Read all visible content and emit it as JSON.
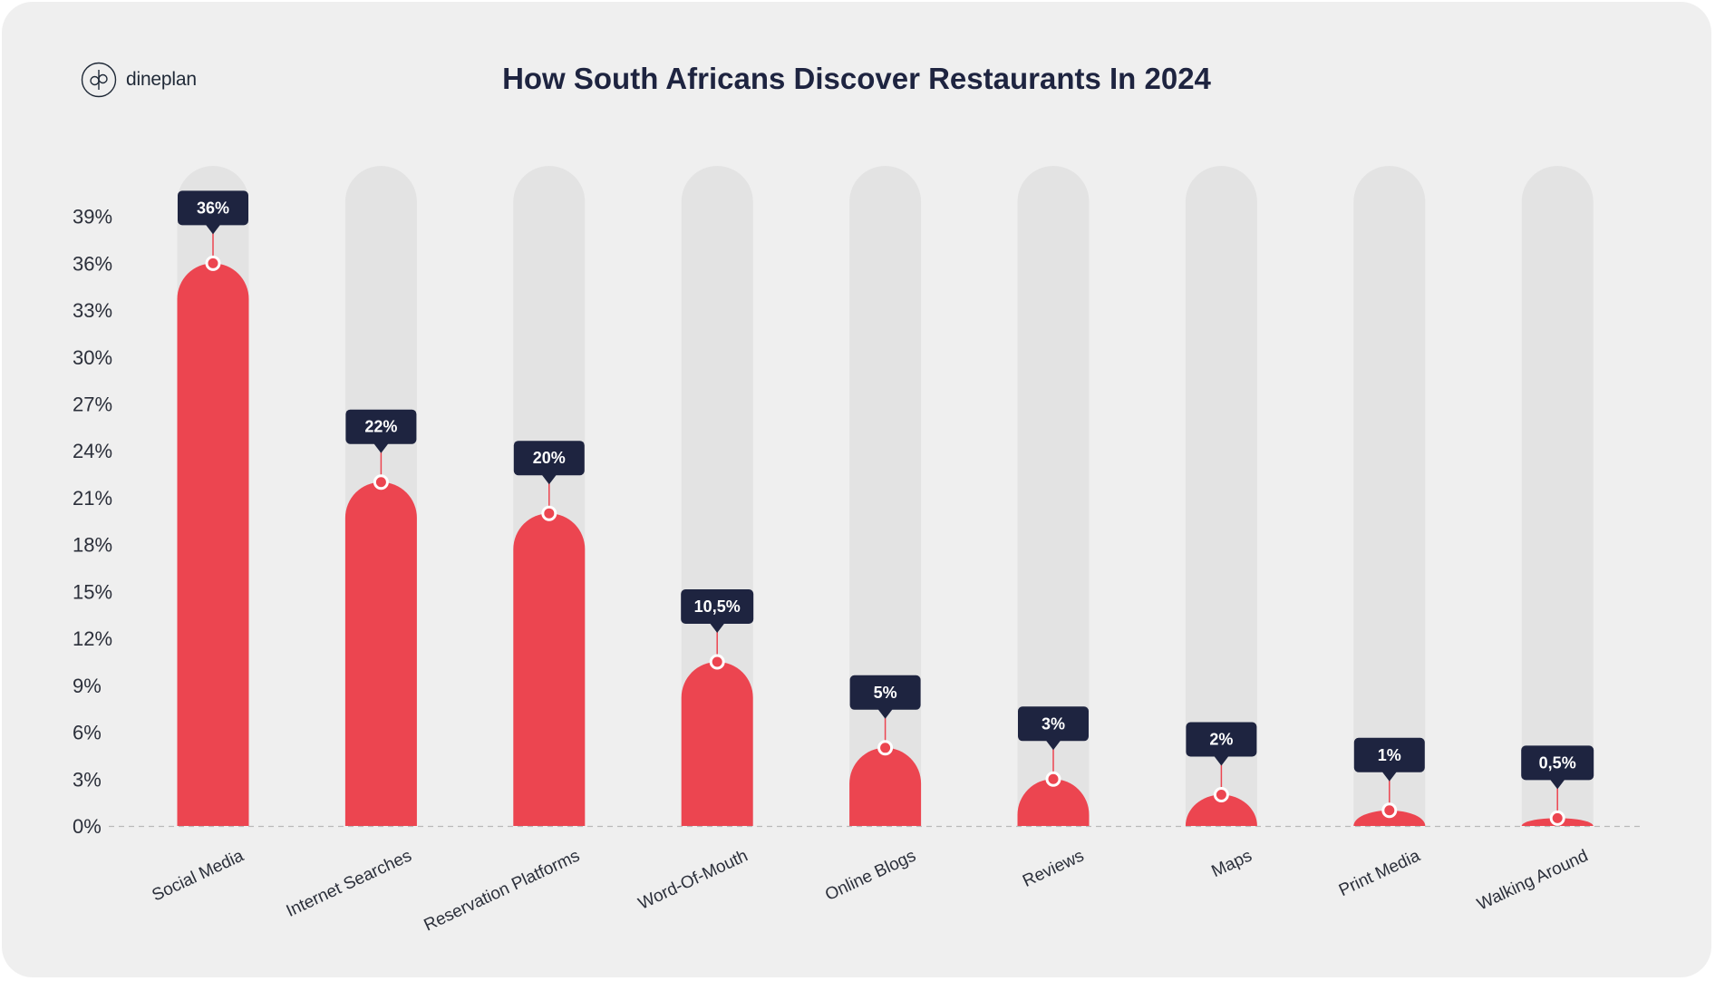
{
  "brand": {
    "name": "dineplan",
    "logo_icon": "dp-monogram-icon"
  },
  "colors": {
    "bar": "#ec4550",
    "track": "#e3e3e3",
    "label_bg": "#1e2440",
    "background": "#efefef",
    "text": "#2b2f3a"
  },
  "chart_data": {
    "type": "bar",
    "title": "How South Africans Discover Restaurants In 2024",
    "xlabel": "",
    "ylabel": "",
    "ylim": [
      0,
      39
    ],
    "yticks": [
      0,
      3,
      6,
      9,
      12,
      15,
      18,
      21,
      24,
      27,
      30,
      33,
      36,
      39
    ],
    "ytick_labels": [
      "0%",
      "3%",
      "6%",
      "9%",
      "12%",
      "15%",
      "18%",
      "21%",
      "24%",
      "27%",
      "30%",
      "33%",
      "36%",
      "39%"
    ],
    "categories": [
      "Social Media",
      "Internet Searches",
      "Reservation Platforms",
      "Word-Of-Mouth",
      "Online Blogs",
      "Reviews",
      "Maps",
      "Print Media",
      "Walking Around"
    ],
    "values": [
      36,
      22,
      20,
      10.5,
      5,
      3,
      2,
      1,
      0.5
    ],
    "data_labels": [
      "36%",
      "22%",
      "20%",
      "10,5%",
      "5%",
      "3%",
      "2%",
      "1%",
      "0,5%"
    ],
    "grid": false,
    "legend": "none"
  }
}
